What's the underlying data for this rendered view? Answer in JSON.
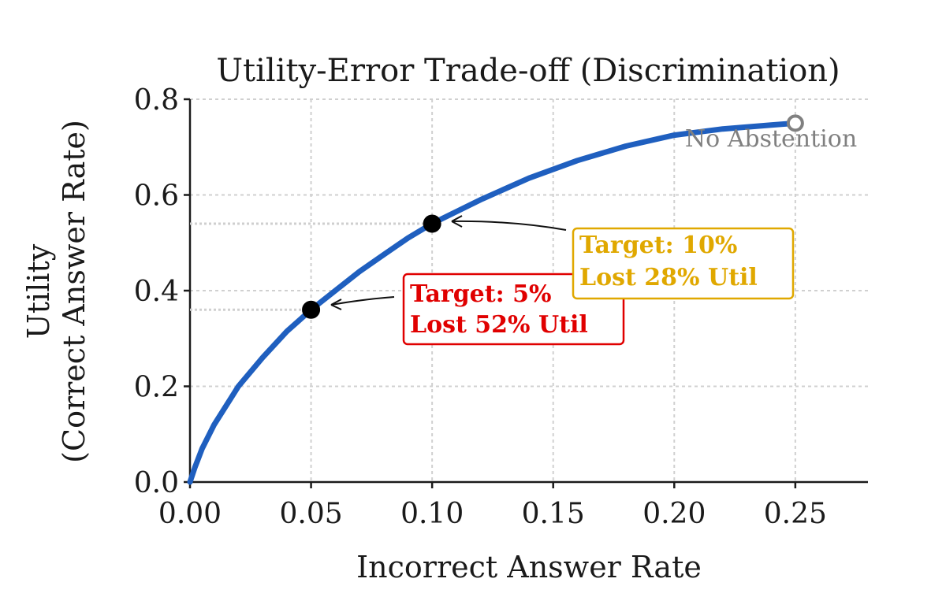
{
  "chart_data": {
    "type": "line",
    "title": "Utility-Error Trade-off (Discrimination)",
    "xlabel": "Incorrect Answer Rate",
    "ylabel_lines": [
      "Utility",
      "(Correct Answer Rate)"
    ],
    "xlim": [
      0,
      0.28
    ],
    "ylim": [
      0,
      0.8
    ],
    "xticks": [
      0.0,
      0.05,
      0.1,
      0.15,
      0.2,
      0.25
    ],
    "xtick_labels": [
      "0.00",
      "0.05",
      "0.10",
      "0.15",
      "0.20",
      "0.25"
    ],
    "yticks": [
      0.0,
      0.2,
      0.4,
      0.6,
      0.8
    ],
    "ytick_labels": [
      "0.0",
      "0.2",
      "0.4",
      "0.6",
      "0.8"
    ],
    "grid": true,
    "series": [
      {
        "color": "#1f5fbf",
        "x": [
          0.0,
          0.002,
          0.005,
          0.01,
          0.015,
          0.02,
          0.03,
          0.04,
          0.05,
          0.06,
          0.07,
          0.08,
          0.09,
          0.1,
          0.12,
          0.14,
          0.16,
          0.18,
          0.2,
          0.22,
          0.24,
          0.25
        ],
        "y": [
          0.0,
          0.03,
          0.07,
          0.12,
          0.16,
          0.2,
          0.26,
          0.315,
          0.36,
          0.4,
          0.44,
          0.475,
          0.51,
          0.54,
          0.59,
          0.635,
          0.672,
          0.702,
          0.725,
          0.738,
          0.746,
          0.75
        ]
      }
    ],
    "markers": [
      {
        "name": "target-5",
        "x": 0.05,
        "y": 0.36,
        "color": "#000000"
      },
      {
        "name": "target-10",
        "x": 0.1,
        "y": 0.54,
        "color": "#000000"
      },
      {
        "name": "no-abstention",
        "x": 0.25,
        "y": 0.75,
        "color": "#808080"
      }
    ],
    "annotations": [
      {
        "lines": [
          "Target: 5%",
          "Lost 52% Util"
        ],
        "color": "#e00000",
        "anchor": {
          "x": 0.05,
          "y": 0.36
        }
      },
      {
        "lines": [
          "Target: 10%",
          "Lost 28% Util"
        ],
        "color": "#e0a800",
        "anchor": {
          "x": 0.1,
          "y": 0.54
        }
      }
    ],
    "point_label": "No Abstention"
  }
}
